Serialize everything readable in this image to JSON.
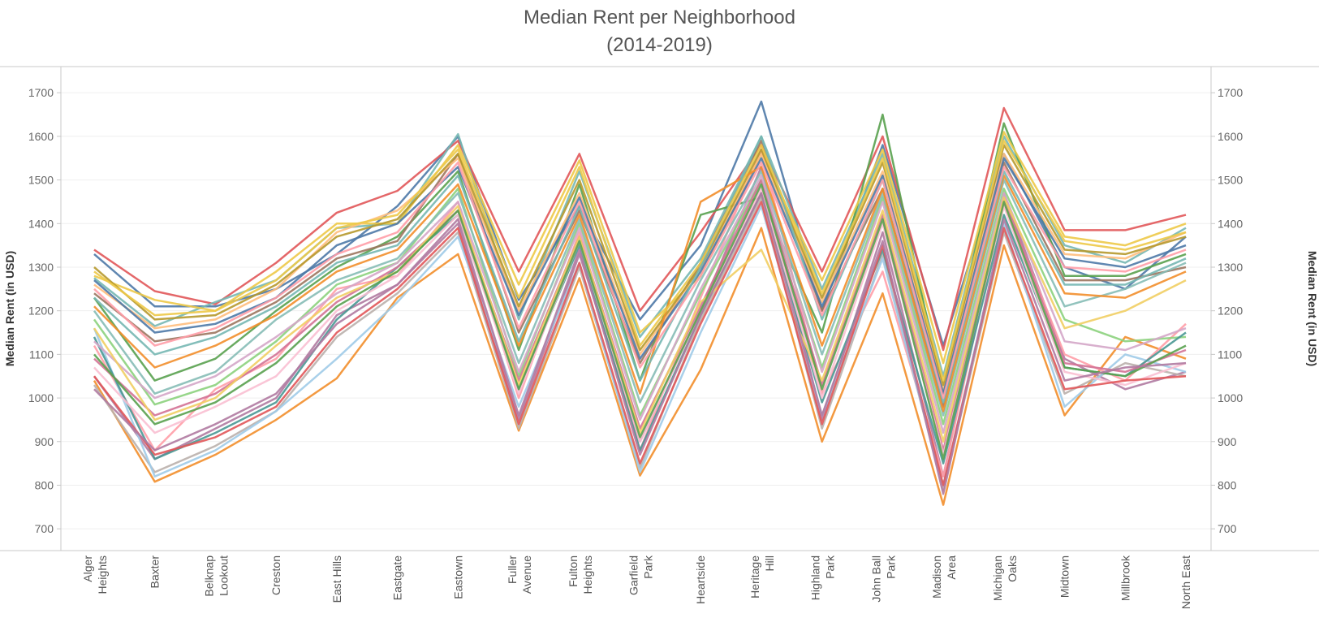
{
  "chart_data": {
    "type": "line",
    "title": "Median Rent per Neighborhood",
    "subtitle": "(2014-2019)",
    "ylabel": "Median Rent (in USD)",
    "ylabel_right": "Median Rent (in USD)",
    "ylim": [
      650,
      1760
    ],
    "yticks": [
      700,
      800,
      900,
      1000,
      1100,
      1200,
      1300,
      1400,
      1500,
      1600,
      1700
    ],
    "grid": true,
    "categories": [
      [
        "Alger",
        "Heights"
      ],
      [
        "Baxter"
      ],
      [
        "Belknap",
        "Lookout"
      ],
      [
        "Creston"
      ],
      [
        "East Hills"
      ],
      [
        "Eastgate"
      ],
      [
        "Eastown"
      ],
      [
        "Fuller",
        "Avenue"
      ],
      [
        "Fulton",
        "Heights"
      ],
      [
        "Garfield",
        "Park"
      ],
      [
        "Heartside"
      ],
      [
        "Heritage",
        "Hill"
      ],
      [
        "Highland",
        "Park"
      ],
      [
        "John Ball",
        "Park"
      ],
      [
        "Madison",
        "Area"
      ],
      [
        "Michigan",
        "Oaks"
      ],
      [
        "Midtown"
      ],
      [
        "Millbrook"
      ],
      [
        "North East"
      ]
    ],
    "colors": [
      "#4e79a7",
      "#f28e2b",
      "#e15759",
      "#76b7b2",
      "#59a14f",
      "#edc948",
      "#b07aa1",
      "#ff9da7",
      "#9c755f",
      "#bab0ac",
      "#8cd17d",
      "#a0cbe8",
      "#ffbe7d",
      "#499894",
      "#86bcb6",
      "#d37295",
      "#fabfd2",
      "#d4a6c8",
      "#b6992d",
      "#f1ce63"
    ],
    "series": [
      {
        "values": [
          1330,
          1210,
          1210,
          1250,
          1330,
          1440,
          1600,
          1225,
          1440,
          1180,
          1350,
          1680,
          1200,
          1580,
          1120,
          1560,
          1300,
          1250,
          1370
        ]
      },
      {
        "values": [
          1040,
          808,
          870,
          950,
          1045,
          1230,
          1330,
          925,
          1275,
          822,
          1065,
          1390,
          900,
          1240,
          755,
          1350,
          960,
          1140,
          1090
        ]
      },
      {
        "values": [
          1340,
          1245,
          1215,
          1310,
          1425,
          1475,
          1590,
          1290,
          1560,
          1200,
          1380,
          1580,
          1290,
          1600,
          1110,
          1665,
          1385,
          1385,
          1420
        ]
      },
      {
        "values": [
          1275,
          1165,
          1220,
          1270,
          1390,
          1400,
          1605,
          1180,
          1520,
          1140,
          1320,
          1600,
          1250,
          1560,
          1050,
          1600,
          1350,
          1310,
          1390
        ]
      },
      {
        "values": [
          1230,
          1040,
          1090,
          1200,
          1300,
          1370,
          1520,
          1110,
          1490,
          1040,
          1420,
          1460,
          1150,
          1650,
          1010,
          1630,
          1280,
          1280,
          1330
        ]
      },
      {
        "values": [
          1280,
          1225,
          1200,
          1290,
          1400,
          1400,
          1580,
          1260,
          1545,
          1150,
          1280,
          1560,
          1270,
          1570,
          1080,
          1610,
          1370,
          1350,
          1400
        ]
      },
      {
        "values": [
          1050,
          860,
          930,
          1000,
          1190,
          1260,
          1400,
          950,
          1330,
          900,
          1200,
          1530,
          950,
          1380,
          820,
          1470,
          1090,
          1020,
          1060
        ]
      },
      {
        "values": [
          1120,
          880,
          1020,
          1090,
          1250,
          1280,
          1450,
          1000,
          1380,
          880,
          1230,
          1570,
          1010,
          1290,
          820,
          1450,
          1100,
          1040,
          1170
        ]
      },
      {
        "values": [
          1240,
          1130,
          1150,
          1220,
          1320,
          1360,
          1560,
          1150,
          1430,
          1080,
          1310,
          1590,
          1200,
          1480,
          980,
          1540,
          1270,
          1270,
          1300
        ]
      },
      {
        "values": [
          1030,
          830,
          890,
          970,
          1140,
          1240,
          1380,
          930,
          1300,
          840,
          1180,
          1460,
          930,
          1330,
          790,
          1380,
          1010,
          1080,
          1050
        ]
      },
      {
        "values": [
          1180,
          985,
          1030,
          1130,
          1260,
          1310,
          1480,
          1050,
          1400,
          960,
          1240,
          1500,
          1070,
          1460,
          940,
          1480,
          1180,
          1130,
          1140
        ]
      },
      {
        "values": [
          1160,
          820,
          880,
          970,
          1090,
          1220,
          1370,
          980,
          1310,
          830,
          1150,
          1440,
          960,
          1320,
          800,
          1400,
          980,
          1100,
          1060
        ]
      },
      {
        "values": [
          1260,
          1160,
          1180,
          1250,
          1380,
          1430,
          1550,
          1200,
          1470,
          1100,
          1300,
          1560,
          1220,
          1520,
          1020,
          1560,
          1330,
          1320,
          1380
        ]
      },
      {
        "values": [
          1140,
          860,
          920,
          990,
          1180,
          1300,
          1420,
          1020,
          1350,
          880,
          1190,
          1470,
          990,
          1340,
          850,
          1420,
          1070,
          1050,
          1150
        ]
      },
      {
        "values": [
          1200,
          1010,
          1060,
          1180,
          1270,
          1320,
          1470,
          1080,
          1410,
          990,
          1270,
          1520,
          1100,
          1470,
          960,
          1500,
          1210,
          1250,
          1310
        ]
      },
      {
        "values": [
          1090,
          960,
          1010,
          1100,
          1220,
          1300,
          1430,
          1040,
          1370,
          930,
          1210,
          1500,
          1030,
          1420,
          880,
          1460,
          1080,
          1060,
          1110
        ]
      },
      {
        "values": [
          1070,
          920,
          980,
          1050,
          1200,
          1280,
          1420,
          1010,
          1360,
          900,
          1200,
          1480,
          1000,
          1400,
          870,
          1440,
          1060,
          1030,
          1080
        ]
      },
      {
        "values": [
          1130,
          1000,
          1050,
          1140,
          1240,
          1310,
          1450,
          1060,
          1390,
          950,
          1250,
          1510,
          1060,
          1450,
          920,
          1470,
          1130,
          1110,
          1160
        ]
      },
      {
        "values": [
          1300,
          1180,
          1190,
          1260,
          1370,
          1410,
          1560,
          1210,
          1500,
          1110,
          1300,
          1570,
          1230,
          1540,
          1030,
          1580,
          1340,
          1330,
          1370
        ]
      },
      {
        "values": [
          1160,
          950,
          1000,
          1120,
          1230,
          1290,
          1440,
          1030,
          1370,
          920,
          1220,
          1340,
          1040,
          1430,
          900,
          1460,
          1160,
          1200,
          1270
        ]
      },
      {
        "values": [
          1270,
          1150,
          1170,
          1230,
          1350,
          1400,
          1530,
          1190,
          1460,
          1090,
          1290,
          1550,
          1210,
          1510,
          1010,
          1550,
          1320,
          1300,
          1350
        ]
      },
      {
        "values": [
          1210,
          1070,
          1120,
          1190,
          1290,
          1340,
          1490,
          1120,
          1420,
          1010,
          1450,
          1530,
          1120,
          1480,
          970,
          1510,
          1240,
          1230,
          1290
        ]
      },
      {
        "values": [
          1050,
          870,
          910,
          980,
          1150,
          1250,
          1390,
          940,
          1310,
          850,
          1170,
          1450,
          940,
          1350,
          800,
          1390,
          1020,
          1040,
          1050
        ]
      },
      {
        "values": [
          1230,
          1100,
          1140,
          1210,
          1310,
          1350,
          1510,
          1130,
          1440,
          1040,
          1300,
          1600,
          1180,
          1500,
          990,
          1520,
          1260,
          1260,
          1320
        ]
      },
      {
        "values": [
          1100,
          940,
          990,
          1080,
          1210,
          1290,
          1430,
          1020,
          1360,
          910,
          1200,
          1490,
          1020,
          1410,
          860,
          1450,
          1070,
          1050,
          1120
        ]
      },
      {
        "values": [
          1290,
          1190,
          1200,
          1270,
          1390,
          1420,
          1570,
          1230,
          1530,
          1120,
          1310,
          1580,
          1240,
          1550,
          1040,
          1590,
          1360,
          1340,
          1380
        ]
      },
      {
        "values": [
          1020,
          880,
          940,
          1010,
          1170,
          1260,
          1410,
          960,
          1340,
          870,
          1190,
          1470,
          960,
          1360,
          780,
          1410,
          1040,
          1070,
          1080
        ]
      },
      {
        "values": [
          1250,
          1120,
          1160,
          1230,
          1330,
          1380,
          1540,
          1160,
          1450,
          1070,
          1280,
          1540,
          1190,
          1500,
          1000,
          1530,
          1300,
          1290,
          1340
        ]
      }
    ]
  }
}
